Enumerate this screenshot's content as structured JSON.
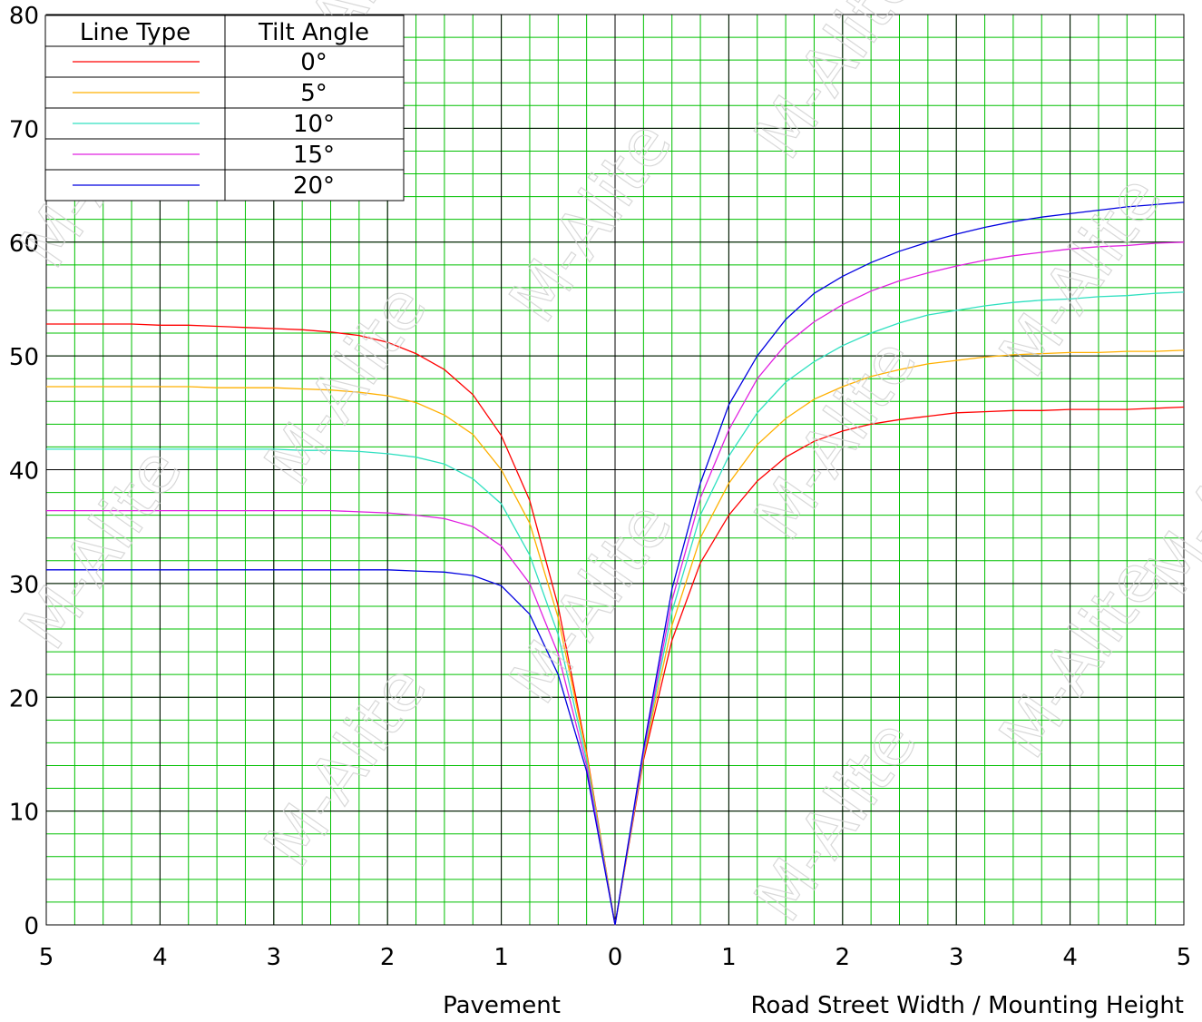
{
  "chart_data": {
    "type": "line",
    "title": "",
    "ylim": [
      0,
      80
    ],
    "xlim": [
      -5,
      5
    ],
    "y_ticks": [
      0,
      10,
      20,
      30,
      40,
      50,
      60,
      70,
      80
    ],
    "x_ticks": [
      -5,
      -4,
      -3,
      -2,
      -1,
      0,
      1,
      2,
      3,
      4,
      5
    ],
    "x_tick_labels": [
      "5",
      "4",
      "3",
      "2",
      "1",
      "0",
      "1",
      "2",
      "3",
      "4",
      "5"
    ],
    "xlabel_left": "Pavement",
    "xlabel_right": "Road Street Width / Mounting Height",
    "grid": true,
    "legend": {
      "position": "top-left",
      "header_line_type": "Line Type",
      "header_tilt_angle": "Tilt Angle"
    },
    "x": [
      -5,
      -4.75,
      -4.5,
      -4.25,
      -4,
      -3.75,
      -3.5,
      -3.25,
      -3,
      -2.75,
      -2.5,
      -2.25,
      -2,
      -1.75,
      -1.5,
      -1.25,
      -1,
      -0.75,
      -0.5,
      -0.25,
      0,
      0.25,
      0.5,
      0.75,
      1,
      1.25,
      1.5,
      1.75,
      2,
      2.25,
      2.5,
      2.75,
      3,
      3.25,
      3.5,
      3.75,
      4,
      4.25,
      4.5,
      4.75,
      5
    ],
    "series": [
      {
        "name": "0°",
        "color": "#ff0000",
        "values": [
          52.8,
          52.8,
          52.8,
          52.8,
          52.7,
          52.7,
          52.6,
          52.5,
          52.4,
          52.3,
          52.1,
          51.8,
          51.2,
          50.2,
          48.8,
          46.6,
          43.0,
          37.3,
          28.0,
          15.2,
          0,
          14.5,
          25.0,
          31.8,
          36.0,
          39.0,
          41.1,
          42.5,
          43.4,
          44.0,
          44.4,
          44.7,
          45.0,
          45.1,
          45.2,
          45.2,
          45.3,
          45.3,
          45.3,
          45.4,
          45.5
        ]
      },
      {
        "name": "5°",
        "color": "#ffb000",
        "values": [
          47.3,
          47.3,
          47.3,
          47.3,
          47.3,
          47.3,
          47.2,
          47.2,
          47.2,
          47.1,
          47.0,
          46.8,
          46.5,
          45.9,
          44.8,
          43.1,
          40.0,
          35.3,
          27.0,
          15.0,
          0,
          14.8,
          26.3,
          34.0,
          38.8,
          42.2,
          44.5,
          46.2,
          47.3,
          48.2,
          48.8,
          49.3,
          49.6,
          49.9,
          50.1,
          50.2,
          50.3,
          50.3,
          50.4,
          50.4,
          50.5
        ]
      },
      {
        "name": "10°",
        "color": "#30e0c0",
        "values": [
          41.8,
          41.8,
          41.8,
          41.8,
          41.8,
          41.8,
          41.8,
          41.8,
          41.8,
          41.7,
          41.7,
          41.6,
          41.4,
          41.1,
          40.5,
          39.2,
          37.0,
          32.5,
          25.5,
          14.5,
          0,
          15.0,
          27.5,
          36.0,
          41.2,
          45.0,
          47.7,
          49.5,
          50.9,
          52.0,
          52.9,
          53.6,
          54.0,
          54.4,
          54.7,
          54.9,
          55.0,
          55.2,
          55.3,
          55.5,
          55.6
        ]
      },
      {
        "name": "15°",
        "color": "#e020e0",
        "values": [
          36.4,
          36.4,
          36.4,
          36.4,
          36.4,
          36.4,
          36.4,
          36.4,
          36.4,
          36.4,
          36.4,
          36.3,
          36.2,
          36.0,
          35.7,
          35.0,
          33.3,
          30.0,
          23.8,
          14.0,
          0,
          15.2,
          28.5,
          37.5,
          43.5,
          48.0,
          51.0,
          53.0,
          54.5,
          55.7,
          56.6,
          57.3,
          57.9,
          58.4,
          58.8,
          59.1,
          59.4,
          59.6,
          59.7,
          59.9,
          60.0
        ]
      },
      {
        "name": "20°",
        "color": "#0000e0",
        "values": [
          31.2,
          31.2,
          31.2,
          31.2,
          31.2,
          31.2,
          31.2,
          31.2,
          31.2,
          31.2,
          31.2,
          31.2,
          31.2,
          31.1,
          31.0,
          30.7,
          29.8,
          27.3,
          22.0,
          13.5,
          0,
          15.5,
          29.5,
          38.8,
          45.7,
          50.0,
          53.2,
          55.5,
          57.0,
          58.2,
          59.2,
          60.0,
          60.7,
          61.3,
          61.8,
          62.2,
          62.5,
          62.8,
          63.1,
          63.3,
          63.5
        ]
      }
    ]
  },
  "watermark_text": "M-Alite"
}
